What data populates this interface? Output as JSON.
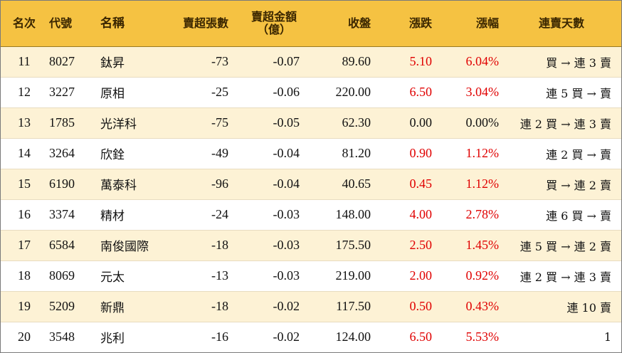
{
  "headers": {
    "rank": "名次",
    "code": "代號",
    "name": "名稱",
    "net_sell_lots": "賣超張數",
    "net_sell_amount_line1": "賣超金額",
    "net_sell_amount_line2": "（億）",
    "close": "收盤",
    "change": "漲跌",
    "change_pct": "漲幅",
    "streak": "連賣天數"
  },
  "rows": [
    {
      "rank": "11",
      "code": "8027",
      "name": "鈦昇",
      "lots": "-73",
      "amount": "-0.07",
      "close": "89.60",
      "change": "5.10",
      "pct": "6.04%",
      "streak": "買 → 連 3 賣",
      "color": "#e00000"
    },
    {
      "rank": "12",
      "code": "3227",
      "name": "原相",
      "lots": "-25",
      "amount": "-0.06",
      "close": "220.00",
      "change": "6.50",
      "pct": "3.04%",
      "streak": "連 5 買 → 賣",
      "color": "#e00000"
    },
    {
      "rank": "13",
      "code": "1785",
      "name": "光洋科",
      "lots": "-75",
      "amount": "-0.05",
      "close": "62.30",
      "change": "0.00",
      "pct": "0.00%",
      "streak": "連 2 買 → 連 3 賣",
      "color": "#111111"
    },
    {
      "rank": "14",
      "code": "3264",
      "name": "欣銓",
      "lots": "-49",
      "amount": "-0.04",
      "close": "81.20",
      "change": "0.90",
      "pct": "1.12%",
      "streak": "連 2 買 → 賣",
      "color": "#e00000"
    },
    {
      "rank": "15",
      "code": "6190",
      "name": "萬泰科",
      "lots": "-96",
      "amount": "-0.04",
      "close": "40.65",
      "change": "0.45",
      "pct": "1.12%",
      "streak": "買 → 連 2 賣",
      "color": "#e00000"
    },
    {
      "rank": "16",
      "code": "3374",
      "name": "精材",
      "lots": "-24",
      "amount": "-0.03",
      "close": "148.00",
      "change": "4.00",
      "pct": "2.78%",
      "streak": "連 6 買 → 賣",
      "color": "#e00000"
    },
    {
      "rank": "17",
      "code": "6584",
      "name": "南俊國際",
      "lots": "-18",
      "amount": "-0.03",
      "close": "175.50",
      "change": "2.50",
      "pct": "1.45%",
      "streak": "連 5 買 → 連 2 賣",
      "color": "#e00000"
    },
    {
      "rank": "18",
      "code": "8069",
      "name": "元太",
      "lots": "-13",
      "amount": "-0.03",
      "close": "219.00",
      "change": "2.00",
      "pct": "0.92%",
      "streak": "連 2 買 → 連 3 賣",
      "color": "#e00000"
    },
    {
      "rank": "19",
      "code": "5209",
      "name": "新鼎",
      "lots": "-18",
      "amount": "-0.02",
      "close": "117.50",
      "change": "0.50",
      "pct": "0.43%",
      "streak": "連 10 賣",
      "color": "#e00000"
    },
    {
      "rank": "20",
      "code": "3548",
      "name": "兆利",
      "lots": "-16",
      "amount": "-0.02",
      "close": "124.00",
      "change": "6.50",
      "pct": "5.53%",
      "streak": "1",
      "color": "#e00000"
    }
  ]
}
